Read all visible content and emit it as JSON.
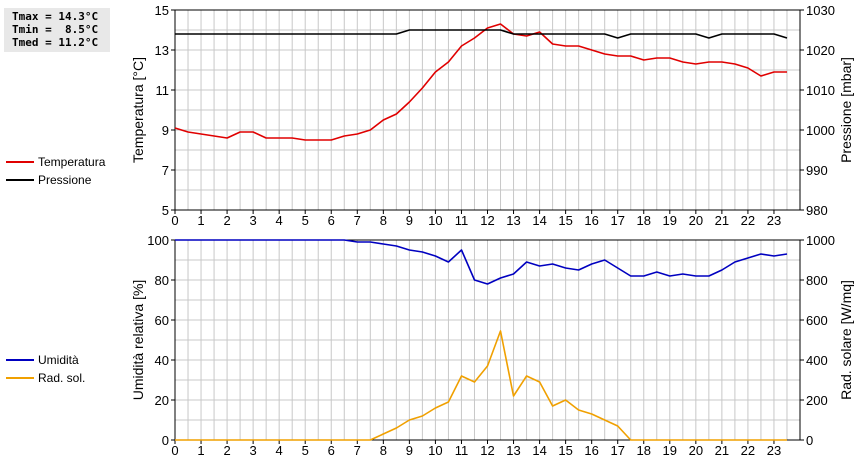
{
  "stats": {
    "tmax": "Tmax = 14.3°C",
    "tmin": "Tmin =  8.5°C",
    "tmed": "Tmed = 11.2°C"
  },
  "colors": {
    "temperature": "#e00000",
    "pressure": "#000000",
    "humidity": "#0000c0",
    "radiation": "#f0a000",
    "grid": "#c8c8c8"
  },
  "chart_data": [
    {
      "type": "line",
      "xlim": [
        0,
        24
      ],
      "xticks": [
        "0",
        "1",
        "2",
        "3",
        "4",
        "5",
        "6",
        "7",
        "8",
        "9",
        "10",
        "11",
        "12",
        "13",
        "14",
        "15",
        "16",
        "17",
        "18",
        "19",
        "20",
        "21",
        "22",
        "23"
      ],
      "ylabel": "Temperatura [°C]",
      "ylim": [
        5,
        15
      ],
      "yticks": [
        "5",
        "7",
        "9",
        "11",
        "13",
        "15"
      ],
      "y2label": "Pressione [mbar]",
      "y2lim": [
        980,
        1030
      ],
      "y2ticks": [
        "980",
        "990",
        "1000",
        "1010",
        "1020",
        "1030"
      ],
      "grid": true,
      "legend_position": "left",
      "series": [
        {
          "name": "Temperatura",
          "axis": "left",
          "x": [
            0,
            0.5,
            1,
            1.5,
            2,
            2.5,
            3,
            3.5,
            4,
            4.5,
            5,
            5.5,
            6,
            6.5,
            7,
            7.5,
            8,
            8.5,
            9,
            9.5,
            10,
            10.5,
            11,
            11.5,
            12,
            12.5,
            13,
            13.5,
            14,
            14.5,
            15,
            15.5,
            16,
            16.5,
            17,
            17.5,
            18,
            18.5,
            19,
            19.5,
            20,
            20.5,
            21,
            21.5,
            22,
            22.5,
            23,
            23.5
          ],
          "values": [
            9.1,
            8.9,
            8.8,
            8.7,
            8.6,
            8.9,
            8.9,
            8.6,
            8.6,
            8.6,
            8.5,
            8.5,
            8.5,
            8.7,
            8.8,
            9.0,
            9.5,
            9.8,
            10.4,
            11.1,
            11.9,
            12.4,
            13.2,
            13.6,
            14.1,
            14.3,
            13.8,
            13.7,
            13.9,
            13.3,
            13.2,
            13.2,
            13.0,
            12.8,
            12.7,
            12.7,
            12.5,
            12.6,
            12.6,
            12.4,
            12.3,
            12.4,
            12.4,
            12.3,
            12.1,
            11.7,
            11.9,
            11.9
          ]
        },
        {
          "name": "Pressione",
          "axis": "right",
          "x": [
            0,
            0.5,
            1,
            1.5,
            2,
            2.5,
            3,
            3.5,
            4,
            4.5,
            5,
            5.5,
            6,
            6.5,
            7,
            7.5,
            8,
            8.5,
            9,
            9.5,
            10,
            10.5,
            11,
            11.5,
            12,
            12.5,
            13,
            13.5,
            14,
            14.5,
            15,
            15.5,
            16,
            16.5,
            17,
            17.5,
            18,
            18.5,
            19,
            19.5,
            20,
            20.5,
            21,
            21.5,
            22,
            22.5,
            23,
            23.5
          ],
          "values": [
            1024,
            1024,
            1024,
            1024,
            1024,
            1024,
            1024,
            1024,
            1024,
            1024,
            1024,
            1024,
            1024,
            1024,
            1024,
            1024,
            1024,
            1024,
            1025,
            1025,
            1025,
            1025,
            1025,
            1025,
            1025,
            1025,
            1024,
            1024,
            1024,
            1024,
            1024,
            1024,
            1024,
            1024,
            1023,
            1024,
            1024,
            1024,
            1024,
            1024,
            1024,
            1023,
            1024,
            1024,
            1024,
            1024,
            1024,
            1023
          ]
        }
      ]
    },
    {
      "type": "line",
      "xlim": [
        0,
        24
      ],
      "xticks": [
        "0",
        "1",
        "2",
        "3",
        "4",
        "5",
        "6",
        "7",
        "8",
        "9",
        "10",
        "11",
        "12",
        "13",
        "14",
        "15",
        "16",
        "17",
        "18",
        "19",
        "20",
        "21",
        "22",
        "23"
      ],
      "ylabel": "Umidità relativa [%]",
      "ylim": [
        0,
        100
      ],
      "yticks": [
        "0",
        "20",
        "40",
        "60",
        "80",
        "100"
      ],
      "y2label": "Rad. solare [W/mq]",
      "y2lim": [
        0,
        1000
      ],
      "y2ticks": [
        "0",
        "200",
        "400",
        "600",
        "800",
        "1000"
      ],
      "grid": true,
      "legend_position": "left",
      "series": [
        {
          "name": "Umidità",
          "axis": "left",
          "x": [
            0,
            0.5,
            1,
            1.5,
            2,
            2.5,
            3,
            3.5,
            4,
            4.5,
            5,
            5.5,
            6,
            6.5,
            7,
            7.5,
            8,
            8.5,
            9,
            9.5,
            10,
            10.5,
            11,
            11.5,
            12,
            12.5,
            13,
            13.5,
            14,
            14.5,
            15,
            15.5,
            16,
            16.5,
            17,
            17.5,
            18,
            18.5,
            19,
            19.5,
            20,
            20.5,
            21,
            21.5,
            22,
            22.5,
            23,
            23.5
          ],
          "values": [
            100,
            100,
            100,
            100,
            100,
            100,
            100,
            100,
            100,
            100,
            100,
            100,
            100,
            100,
            99,
            99,
            98,
            97,
            95,
            94,
            92,
            89,
            95,
            80,
            78,
            81,
            83,
            89,
            87,
            88,
            86,
            85,
            88,
            90,
            86,
            82,
            82,
            84,
            82,
            83,
            82,
            82,
            85,
            89,
            91,
            93,
            92,
            93
          ]
        },
        {
          "name": "Rad. sol.",
          "axis": "right",
          "x": [
            0,
            0.5,
            1,
            1.5,
            2,
            2.5,
            3,
            3.5,
            4,
            4.5,
            5,
            5.5,
            6,
            6.5,
            7,
            7.5,
            8,
            8.5,
            9,
            9.5,
            10,
            10.5,
            11,
            11.5,
            12,
            12.5,
            13,
            13.5,
            14,
            14.5,
            15,
            15.5,
            16,
            16.5,
            17,
            17.5,
            18,
            18.5,
            19,
            19.5,
            20,
            20.5,
            21,
            21.5,
            22,
            22.5,
            23,
            23.5
          ],
          "values": [
            0,
            0,
            0,
            0,
            0,
            0,
            0,
            0,
            0,
            0,
            0,
            0,
            0,
            0,
            0,
            0,
            30,
            60,
            100,
            120,
            160,
            190,
            320,
            290,
            370,
            545,
            220,
            320,
            290,
            170,
            200,
            150,
            130,
            100,
            70,
            0,
            0,
            0,
            0,
            0,
            0,
            0,
            0,
            0,
            0,
            0,
            0,
            0
          ]
        }
      ]
    }
  ]
}
